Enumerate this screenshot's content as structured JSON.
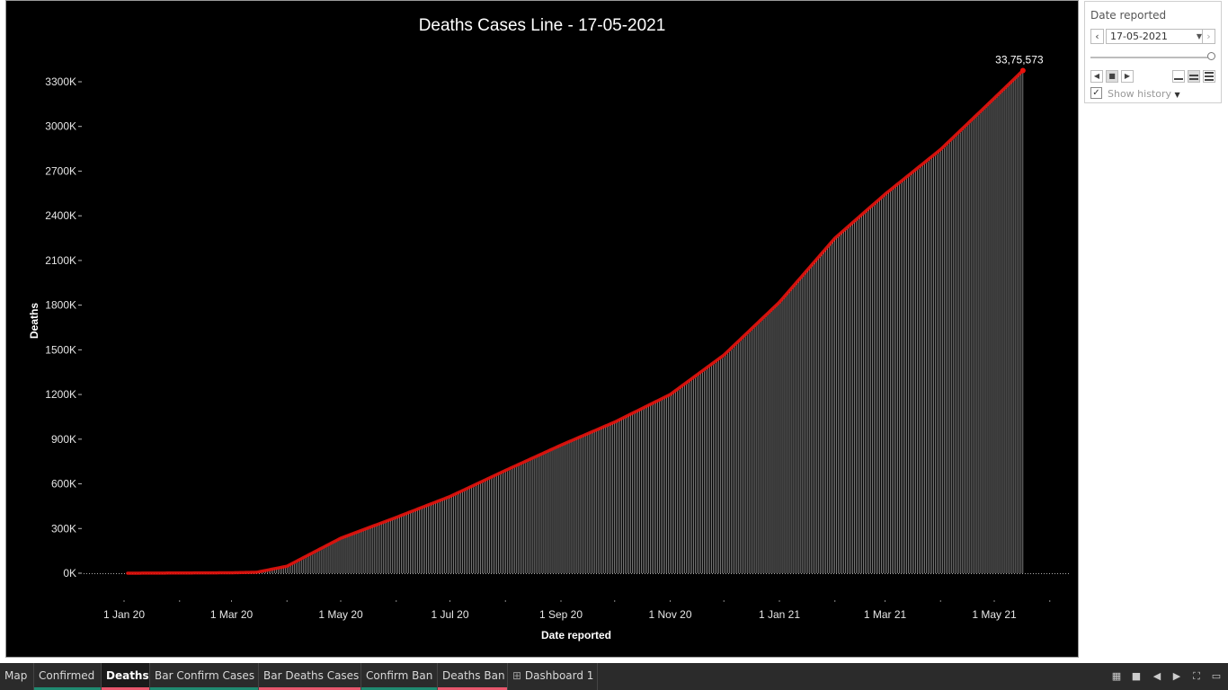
{
  "chart_data": {
    "type": "bar",
    "title": "Deaths Cases Line - 17-05-2021",
    "xlabel": "Date reported",
    "ylabel": "Deaths",
    "x_ticks": [
      "1 Jan 20",
      "1 Mar 20",
      "1 May 20",
      "1 Jul 20",
      "1 Sep 20",
      "1 Nov 20",
      "1 Jan 21",
      "1 Mar 21",
      "1 May 21"
    ],
    "y_ticks": [
      "0K",
      "300K",
      "600K",
      "900K",
      "1200K",
      "1500K",
      "1800K",
      "2100K",
      "2400K",
      "2700K",
      "3000K",
      "3300K"
    ],
    "ylim": [
      0,
      3300000
    ],
    "x_range": [
      "2020-01-03",
      "2021-05-17"
    ],
    "series": [
      {
        "name": "Deaths",
        "points": [
          [
            "2020-01-03",
            0
          ],
          [
            "2020-03-01",
            3000
          ],
          [
            "2020-03-15",
            6500
          ],
          [
            "2020-04-01",
            47000
          ],
          [
            "2020-04-15",
            135000
          ],
          [
            "2020-05-01",
            235000
          ],
          [
            "2020-06-01",
            375000
          ],
          [
            "2020-07-01",
            515000
          ],
          [
            "2020-08-01",
            690000
          ],
          [
            "2020-09-01",
            860000
          ],
          [
            "2020-10-01",
            1015000
          ],
          [
            "2020-11-01",
            1200000
          ],
          [
            "2020-12-01",
            1465000
          ],
          [
            "2021-01-01",
            1820000
          ],
          [
            "2021-02-01",
            2250000
          ],
          [
            "2021-03-01",
            2545000
          ],
          [
            "2021-04-01",
            2845000
          ],
          [
            "2021-05-01",
            3190000
          ],
          [
            "2021-05-17",
            3375573
          ]
        ]
      }
    ],
    "annotation": "33,75,573",
    "colors": {
      "background": "#000000",
      "line": "#e8120c",
      "bars": "#d9d9d9",
      "text": "#ffffff"
    }
  },
  "filter": {
    "title": "Date reported",
    "value": "17-05-2021",
    "show_history": "Show history",
    "checked": "✓"
  },
  "tabs": [
    {
      "label": "Map",
      "color": ""
    },
    {
      "label": "Confirmed",
      "color": "#1f8a70"
    },
    {
      "label": "Deaths",
      "color": "#e8566c"
    },
    {
      "label": "Bar Confirm Cases",
      "color": "#1f8a70"
    },
    {
      "label": "Bar Deaths Cases",
      "color": "#e8566c"
    },
    {
      "label": "Confirm Ban",
      "color": "#1f8a70"
    },
    {
      "label": "Deaths Ban",
      "color": "#e8566c"
    },
    {
      "label": "Dashboard 1",
      "color": ""
    }
  ]
}
